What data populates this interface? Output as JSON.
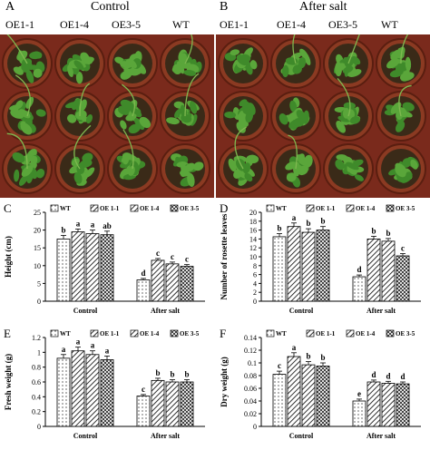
{
  "panels": {
    "A": {
      "letter": "A",
      "title": "Control",
      "lines": [
        "OE1-1",
        "OE1-4",
        "OE3-5",
        "WT"
      ]
    },
    "B": {
      "letter": "B",
      "title": "After salt",
      "lines": [
        "OE1-1",
        "OE1-4",
        "OE3-5",
        "WT"
      ]
    }
  },
  "colors": {
    "tray": "#7a2a1c",
    "pot": "#8b3a22",
    "foliage": "#3f8a2a",
    "soil": "#3a2a18"
  },
  "chart_data": [
    {
      "id": "C",
      "type": "bar",
      "letter": "C",
      "categories": [
        "Control",
        "After salt"
      ],
      "series": [
        {
          "name": "WT",
          "pattern": "dots",
          "values": [
            17.5,
            6
          ],
          "errors": [
            1.0,
            0.4
          ],
          "letters": [
            "b",
            "d"
          ]
        },
        {
          "name": "OE 1-1",
          "pattern": "hatch",
          "values": [
            19.5,
            11.5
          ],
          "errors": [
            0.8,
            0.5
          ],
          "letters": [
            "a",
            "c"
          ]
        },
        {
          "name": "OE 1-4",
          "pattern": "hatch",
          "values": [
            19,
            10.5
          ],
          "errors": [
            1.0,
            0.5
          ],
          "letters": [
            "a",
            "c"
          ]
        },
        {
          "name": "OE 3-5",
          "pattern": "cross",
          "values": [
            18.7,
            9.8
          ],
          "errors": [
            1.0,
            0.5
          ],
          "letters": [
            "ab",
            "c"
          ]
        }
      ],
      "ylabel": "Height (cm)",
      "ylim": [
        0,
        25
      ],
      "yticks": [
        "0",
        "5",
        "10",
        "15",
        "20",
        "25"
      ],
      "legend": "top"
    },
    {
      "id": "D",
      "type": "bar",
      "letter": "D",
      "categories": [
        "Control",
        "After salt"
      ],
      "series": [
        {
          "name": "WT",
          "pattern": "dots",
          "values": [
            14.5,
            5.5
          ],
          "errors": [
            0.7,
            0.4
          ],
          "letters": [
            "b",
            "d"
          ]
        },
        {
          "name": "OE 1-1",
          "pattern": "hatch",
          "values": [
            16.8,
            14
          ],
          "errors": [
            0.8,
            0.6
          ],
          "letters": [
            "a",
            "b"
          ]
        },
        {
          "name": "OE 1-4",
          "pattern": "hatch",
          "values": [
            15.5,
            13.5
          ],
          "errors": [
            0.8,
            0.6
          ],
          "letters": [
            "b",
            "b"
          ]
        },
        {
          "name": "OE 3-5",
          "pattern": "cross",
          "values": [
            16,
            10.2
          ],
          "errors": [
            0.8,
            0.5
          ],
          "letters": [
            "b",
            "c"
          ]
        }
      ],
      "ylabel": "Number of rosette leaves",
      "ylim": [
        0,
        20
      ],
      "yticks": [
        "0",
        "2",
        "4",
        "6",
        "8",
        "10",
        "12",
        "14",
        "16",
        "18",
        "20"
      ],
      "legend": "top"
    },
    {
      "id": "E",
      "type": "bar",
      "letter": "E",
      "categories": [
        "Control",
        "After salt"
      ],
      "series": [
        {
          "name": "WT",
          "pattern": "dots",
          "values": [
            0.92,
            0.41
          ],
          "errors": [
            0.05,
            0.02
          ],
          "letters": [
            "a",
            "c"
          ]
        },
        {
          "name": "OE 1-1",
          "pattern": "hatch",
          "values": [
            1.02,
            0.62
          ],
          "errors": [
            0.05,
            0.03
          ],
          "letters": [
            "a",
            "b"
          ]
        },
        {
          "name": "OE 1-4",
          "pattern": "hatch",
          "values": [
            0.97,
            0.6
          ],
          "errors": [
            0.05,
            0.03
          ],
          "letters": [
            "a",
            "b"
          ]
        },
        {
          "name": "OE 3-5",
          "pattern": "cross",
          "values": [
            0.9,
            0.6
          ],
          "errors": [
            0.05,
            0.03
          ],
          "letters": [
            "a",
            "b"
          ]
        }
      ],
      "ylabel": "Fresh weight (g)",
      "ylim": [
        0,
        1.2
      ],
      "yticks": [
        "0",
        "0.2",
        "0.4",
        "0.6",
        "0.8",
        "1",
        "1.2"
      ],
      "legend": "top"
    },
    {
      "id": "F",
      "type": "bar",
      "letter": "F",
      "categories": [
        "Control",
        "After salt"
      ],
      "series": [
        {
          "name": "WT",
          "pattern": "dots",
          "values": [
            0.082,
            0.04
          ],
          "errors": [
            0.005,
            0.003
          ],
          "letters": [
            "c",
            "e"
          ]
        },
        {
          "name": "OE 1-1",
          "pattern": "hatch",
          "values": [
            0.11,
            0.07
          ],
          "errors": [
            0.006,
            0.003
          ],
          "letters": [
            "a",
            "d"
          ]
        },
        {
          "name": "OE 1-4",
          "pattern": "hatch",
          "values": [
            0.097,
            0.068
          ],
          "errors": [
            0.005,
            0.003
          ],
          "letters": [
            "b",
            "d"
          ]
        },
        {
          "name": "OE 3-5",
          "pattern": "cross",
          "values": [
            0.095,
            0.067
          ],
          "errors": [
            0.005,
            0.003
          ],
          "letters": [
            "b",
            "d"
          ]
        }
      ],
      "ylabel": "Dry weight (g)",
      "ylim": [
        0,
        0.14
      ],
      "yticks": [
        "0",
        "0.02",
        "0.04",
        "0.06",
        "0.08",
        "0.1",
        "0.12",
        "0.14"
      ],
      "legend": "top"
    }
  ]
}
